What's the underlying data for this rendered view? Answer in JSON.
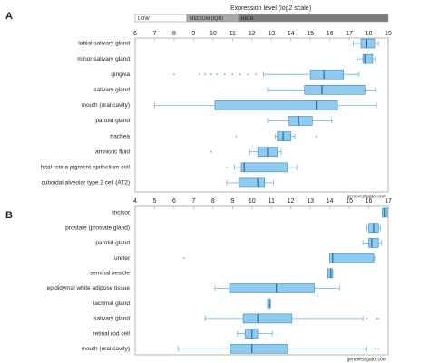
{
  "chart_data": [
    {
      "type": "boxplot",
      "panel_label": "A",
      "legend": {
        "title": "Expression level (log2 scale)",
        "bands": [
          {
            "label": "LOW",
            "from": 6,
            "to": 8.65,
            "color": "#ffffff"
          },
          {
            "label": "MEDIUM (IQR)",
            "from": 8.65,
            "to": 11.3,
            "color": "#a8a8a8"
          },
          {
            "label": "HIGH",
            "from": 11.3,
            "to": 19,
            "color": "#7a7a7a"
          }
        ]
      },
      "xlim": [
        6,
        19
      ],
      "xticks": [
        6,
        7,
        8,
        9,
        10,
        11,
        12,
        13,
        14,
        15,
        16,
        17,
        18,
        19
      ],
      "color": "#8ecbee",
      "categories": [
        "labial salivary gland",
        "minor salivary gland",
        "gingiva",
        "salivary gland",
        "mouth (oral cavity)",
        "parotid gland",
        "trachea",
        "amniotic fluid",
        "fetal retina pigment epithelium cell",
        "cuboidal alveolar type 2 cell (AT2)"
      ],
      "min": [
        17.2,
        17.4,
        12.6,
        12.8,
        7.0,
        12.8,
        13.2,
        11.9,
        11.1,
        10.7
      ],
      "q1": [
        17.6,
        17.7,
        15.0,
        14.7,
        10.1,
        13.9,
        13.3,
        12.3,
        11.45,
        11.35
      ],
      "median": [
        17.9,
        17.8,
        15.7,
        15.6,
        15.3,
        14.4,
        13.6,
        12.8,
        11.6,
        12.3
      ],
      "q3": [
        18.3,
        18.2,
        16.7,
        17.8,
        16.4,
        15.1,
        14.0,
        13.3,
        13.8,
        12.65
      ],
      "max": [
        18.5,
        18.35,
        17.5,
        18.35,
        18.4,
        16.1,
        14.2,
        13.5,
        14.3,
        13.1
      ],
      "outliers": [
        [],
        [],
        [
          8.0,
          9.3,
          9.6,
          9.9,
          10.2,
          10.6,
          11.0,
          11.4,
          11.8,
          12.2
        ],
        [],
        [],
        [],
        [
          11.2,
          15.3
        ],
        [
          9.9
        ],
        [
          10.7
        ],
        []
      ],
      "watermark": "genevestigator.com"
    },
    {
      "type": "boxplot",
      "panel_label": "B",
      "xlim": [
        4,
        17
      ],
      "xticks": [
        4,
        5,
        6,
        7,
        8,
        9,
        10,
        11,
        12,
        13,
        14,
        15,
        16,
        17
      ],
      "color": "#8ecbee",
      "categories": [
        "incisor",
        "prostate (prostate gland)",
        "parotid gland",
        "ureter",
        "seminal vesicle",
        "epididymal white adipose tissue",
        "lacrimal gland",
        "salivary gland",
        "retinal rod cell",
        "mouth (oral cavity)"
      ],
      "min": [
        16.7,
        15.9,
        15.7,
        14.0,
        13.9,
        8.1,
        10.8,
        7.6,
        9.25,
        6.2
      ],
      "q1": [
        16.7,
        16.0,
        16.0,
        14.0,
        13.9,
        8.85,
        10.8,
        9.55,
        9.65,
        8.9
      ],
      "median": [
        16.8,
        16.25,
        16.15,
        14.15,
        14.05,
        11.25,
        10.9,
        10.3,
        10.0,
        10.0
      ],
      "q3": [
        16.95,
        16.5,
        16.5,
        16.25,
        14.15,
        13.2,
        10.95,
        12.05,
        10.3,
        11.8
      ],
      "max": [
        16.95,
        16.6,
        16.65,
        16.3,
        14.15,
        14.5,
        10.95,
        15.7,
        11.05,
        15.9
      ],
      "outliers": [
        [],
        [],
        [],
        [
          6.5
        ],
        [],
        [],
        [],
        [
          15.9,
          16.4,
          16.5
        ],
        [],
        [
          16.35,
          16.5
        ]
      ],
      "watermark": "genevestigator.com"
    }
  ]
}
